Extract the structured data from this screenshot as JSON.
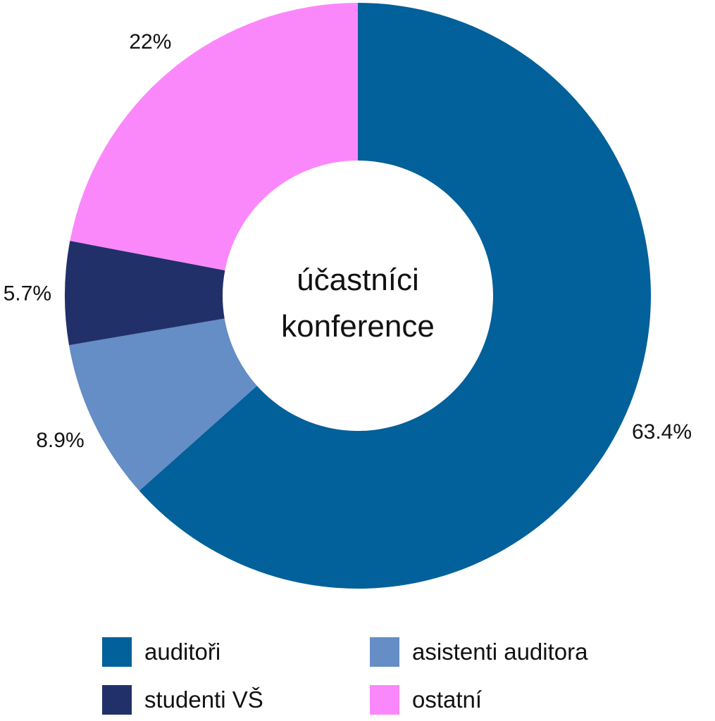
{
  "chart_data": {
    "type": "pie",
    "donut": true,
    "center_label": [
      "účastníci",
      "konference"
    ],
    "categories": [
      "auditoři",
      "asistenti auditora",
      "studenti VŠ",
      "ostatní"
    ],
    "values": [
      63.4,
      8.9,
      5.7,
      22
    ],
    "value_labels": [
      "63.4%",
      "8.9%",
      "5.7%",
      "22%"
    ],
    "colors": [
      "#02609A",
      "#658DC6",
      "#22306A",
      "#FB88FB"
    ],
    "legend_position": "bottom"
  }
}
